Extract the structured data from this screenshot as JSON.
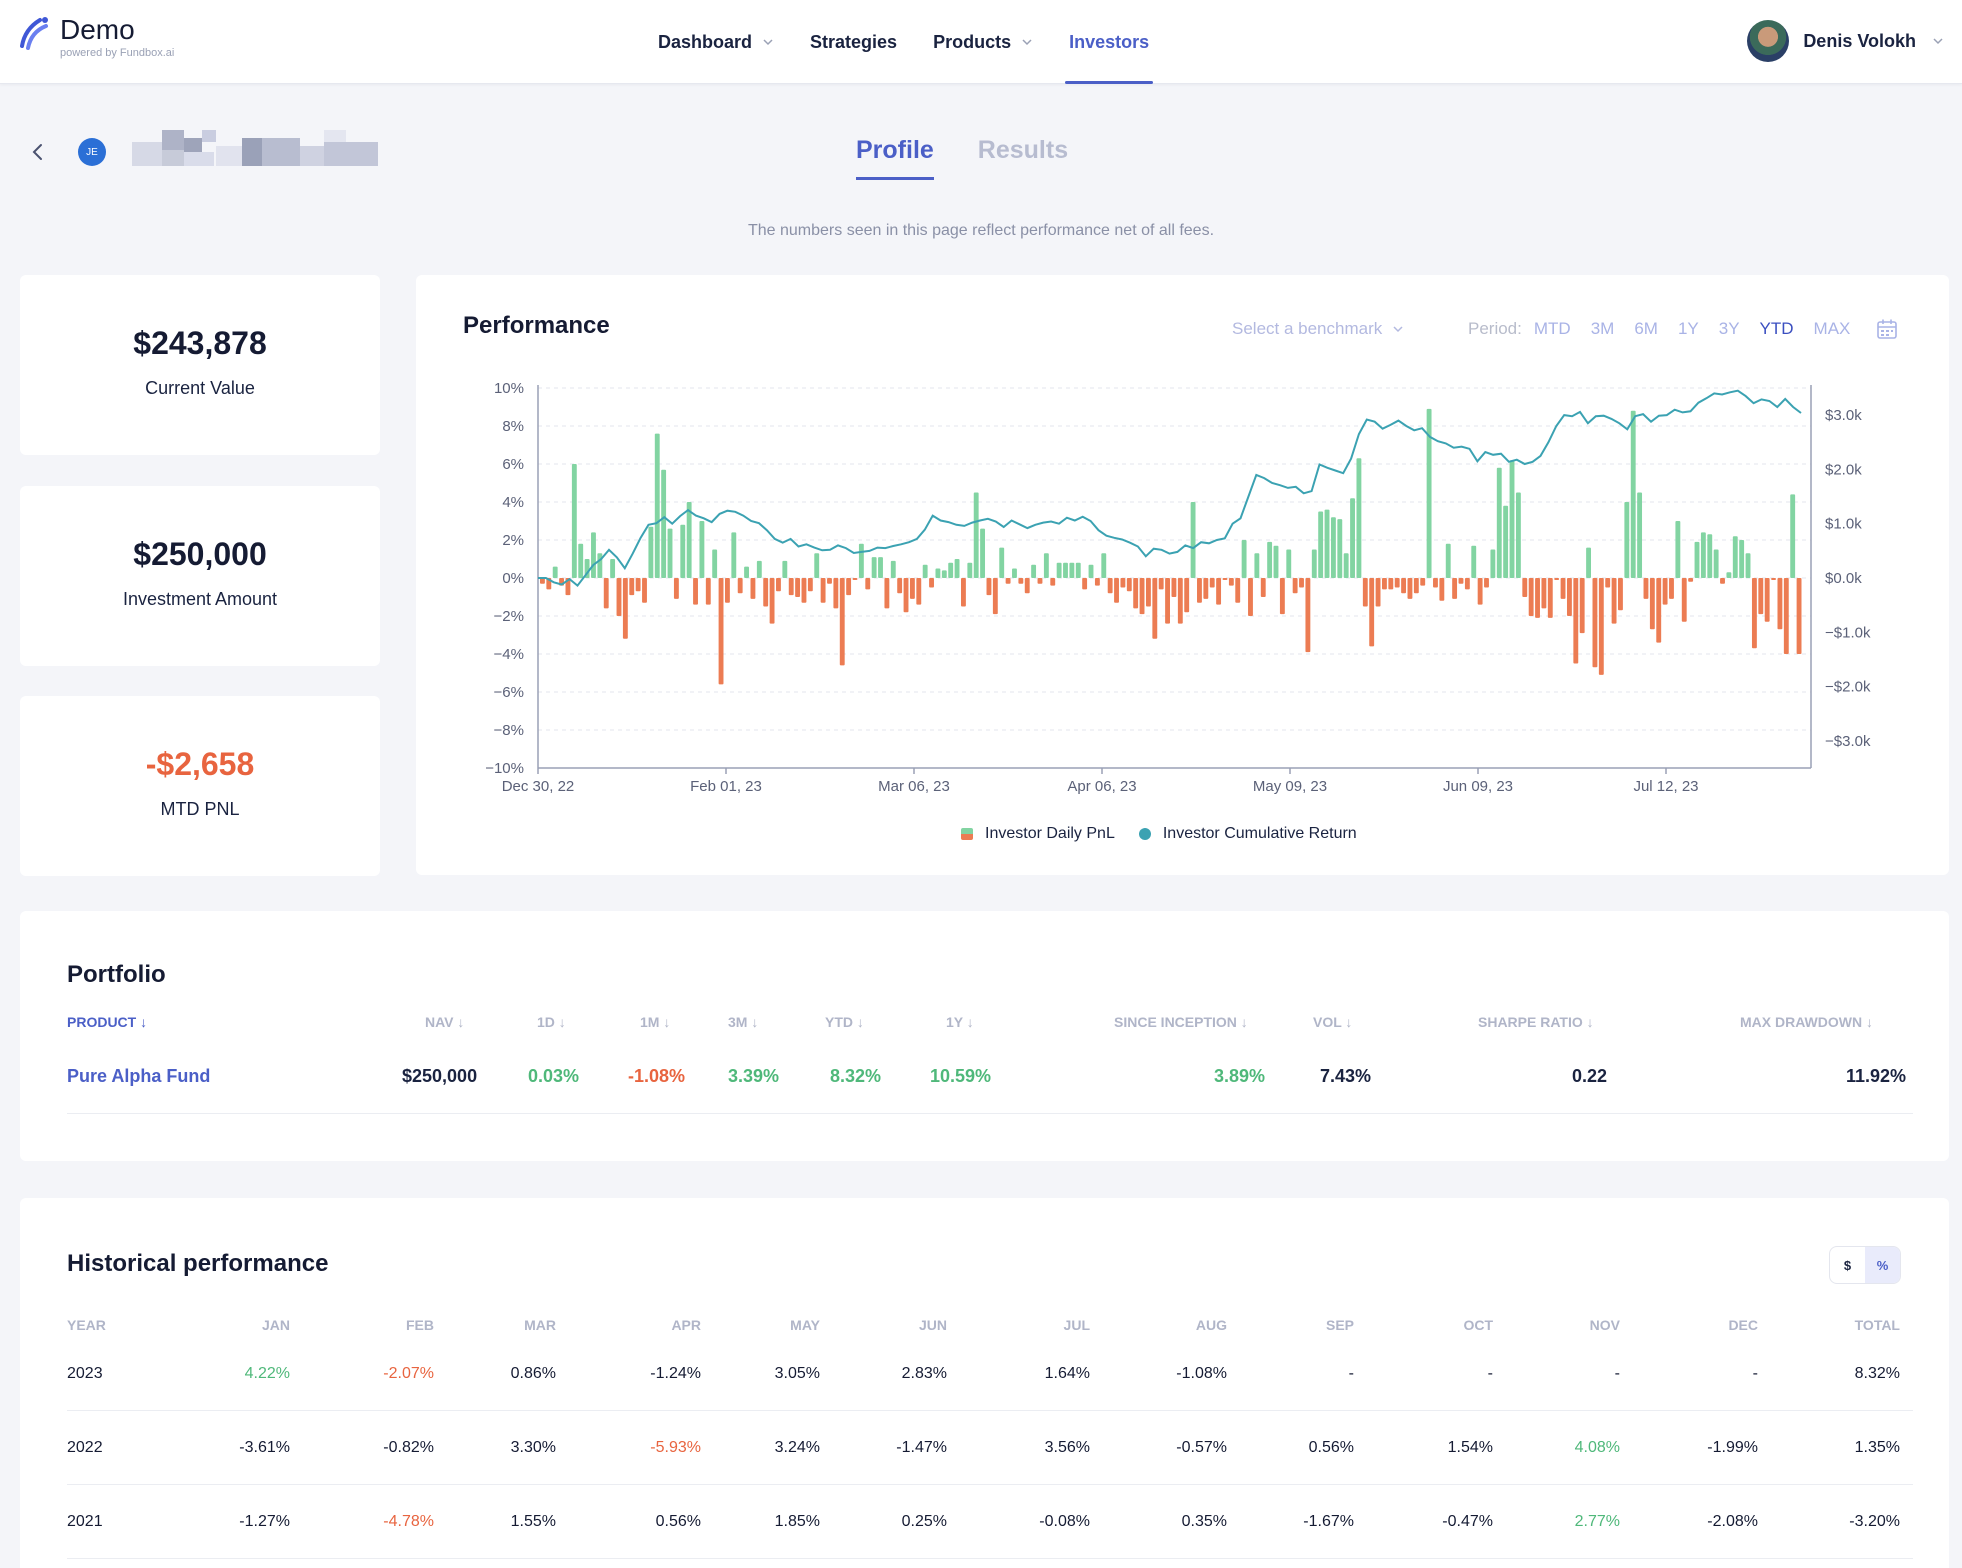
{
  "brand": {
    "name": "Demo",
    "sub": "powered by Fundbox.ai"
  },
  "nav": {
    "dashboard": "Dashboard",
    "strategies": "Strategies",
    "products": "Products",
    "investors": "Investors"
  },
  "user": {
    "name": "Denis Volokh"
  },
  "investor": {
    "initials": "JE"
  },
  "tabs": {
    "profile": "Profile",
    "results": "Results"
  },
  "note": "The numbers seen in this page reflect performance net of all fees.",
  "stats": [
    {
      "value": "$243,878",
      "label": "Current Value"
    },
    {
      "value": "$250,000",
      "label": "Investment Amount"
    },
    {
      "value": "-$2,658",
      "label": "MTD PNL"
    }
  ],
  "performance": {
    "title": "Performance",
    "benchmark": "Select a benchmark",
    "period_label": "Period:",
    "periods": [
      "MTD",
      "3M",
      "6M",
      "1Y",
      "3Y",
      "YTD",
      "MAX"
    ],
    "active_period": "YTD",
    "legend": {
      "pnl": "Investor Daily PnL",
      "cum": "Investor Cumulative Return"
    }
  },
  "chart_data": {
    "type": "bar",
    "x_ticks": [
      "Dec 30, 22",
      "Feb 01, 23",
      "Mar 06, 23",
      "Apr 06, 23",
      "May 09, 23",
      "Jun 09, 23",
      "Jul 12, 23"
    ],
    "y_left_ticks": [
      "10%",
      "8%",
      "6%",
      "4%",
      "2%",
      "0%",
      "−2%",
      "−4%",
      "−6%",
      "−8%",
      "−10%"
    ],
    "y_left_range": [
      -10,
      10
    ],
    "y_right_ticks": [
      "$3.0k",
      "$2.0k",
      "$1.0k",
      "$0.0k",
      "−$1.0k",
      "−$2.0k",
      "−$3.0k"
    ],
    "y_right_range": [
      -3.5,
      3.5
    ],
    "grid": true,
    "legend_position": "bottom-center",
    "colors": {
      "positive": "#82d4a2",
      "negative": "#ec7c53",
      "line": "#3ba2b2"
    },
    "series": [
      {
        "name": "Investor Daily PnL",
        "axis": "left",
        "values": [
          -0.3,
          -0.6,
          0.6,
          -0.4,
          -0.9,
          6.0,
          1.8,
          1.0,
          2.4,
          1.3,
          -1.6,
          1.0,
          -2.0,
          -3.2,
          -0.9,
          -0.7,
          -1.3,
          2.7,
          7.6,
          5.7,
          2.6,
          -1.1,
          2.8,
          4.0,
          -1.4,
          3.0,
          -1.4,
          1.5,
          -5.6,
          -1.3,
          2.4,
          -0.8,
          0.6,
          -1.1,
          0.9,
          -1.5,
          -2.4,
          -0.7,
          0.9,
          -0.9,
          -1.0,
          -1.3,
          -0.7,
          1.3,
          -1.3,
          -0.3,
          -1.6,
          -4.6,
          -0.9,
          -0.1,
          1.8,
          -0.6,
          1.1,
          1.1,
          -1.6,
          0.9,
          -0.8,
          -1.8,
          -1.1,
          -1.4,
          0.7,
          -0.5,
          0.5,
          0.4,
          0.8,
          1.0,
          -1.5,
          0.8,
          4.5,
          2.6,
          -0.9,
          -1.9,
          1.6,
          -0.3,
          0.5,
          -0.3,
          -0.8,
          0.7,
          -0.3,
          1.3,
          -0.4,
          0.8,
          0.8,
          0.8,
          0.8,
          -0.6,
          0.7,
          -0.4,
          1.3,
          -0.8,
          -1.3,
          -0.5,
          -0.7,
          -1.6,
          -1.9,
          -1.5,
          -3.2,
          -0.6,
          -2.4,
          -1.0,
          -2.4,
          -1.8,
          4.0,
          -1.3,
          -1.1,
          -0.5,
          -1.4,
          -0.1,
          -0.4,
          -1.3,
          2.0,
          -2.0,
          1.3,
          -1.0,
          1.9,
          1.7,
          -1.9,
          1.5,
          -0.8,
          -0.5,
          -3.9,
          1.5,
          3.5,
          3.6,
          3.2,
          3.1,
          1.3,
          4.2,
          6.3,
          -1.5,
          -3.6,
          -1.5,
          -0.6,
          -0.6,
          -0.5,
          -0.8,
          -1.1,
          -0.8,
          -0.4,
          8.9,
          -0.5,
          -1.2,
          1.8,
          -1.1,
          -0.3,
          -0.6,
          1.7,
          -1.4,
          -0.5,
          1.5,
          5.8,
          3.8,
          6.2,
          4.5,
          -1.0,
          -2.0,
          -2.1,
          -1.6,
          -2.1,
          -0.1,
          -1.1,
          -2.0,
          -4.5,
          -2.9,
          1.6,
          -4.7,
          -5.1,
          -0.5,
          -2.4,
          -1.7,
          4.0,
          8.8,
          4.5,
          -1.1,
          -2.7,
          -3.4,
          -1.4,
          -1.1,
          3.0,
          -2.3,
          -0.2,
          1.9,
          2.4,
          2.3,
          1.5,
          -0.3,
          0.3,
          2.2,
          2.0,
          1.3,
          -3.7,
          -1.9,
          -2.3,
          -0.1,
          -2.7,
          -4.0,
          4.4,
          -4.0
        ]
      },
      {
        "name": "Investor Cumulative Return",
        "axis": "right",
        "values": [
          0.0,
          0.0,
          -0.08,
          -0.12,
          -0.02,
          -0.14,
          0.05,
          0.24,
          0.35,
          0.52,
          0.38,
          0.18,
          0.45,
          0.74,
          0.98,
          1.01,
          1.12,
          1.0,
          1.14,
          1.25,
          1.15,
          1.1,
          1.03,
          1.18,
          1.24,
          1.22,
          1.15,
          1.05,
          1.01,
          0.88,
          0.72,
          0.65,
          0.72,
          0.58,
          0.62,
          0.56,
          0.51,
          0.52,
          0.6,
          0.55,
          0.46,
          0.48,
          0.5,
          0.56,
          0.55,
          0.59,
          0.62,
          0.66,
          0.72,
          0.89,
          1.15,
          1.06,
          1.03,
          0.98,
          0.96,
          1.02,
          1.06,
          1.09,
          1.04,
          0.94,
          1.06,
          0.99,
          0.92,
          0.98,
          1.02,
          1.04,
          1.0,
          1.11,
          1.06,
          1.13,
          1.05,
          0.88,
          0.78,
          0.74,
          0.71,
          0.65,
          0.58,
          0.4,
          0.54,
          0.52,
          0.45,
          0.48,
          0.6,
          0.55,
          0.66,
          0.64,
          0.7,
          0.73,
          1.0,
          1.1,
          1.5,
          1.9,
          1.84,
          1.75,
          1.71,
          1.66,
          1.68,
          1.56,
          1.6,
          2.09,
          2.03,
          1.98,
          1.93,
          2.2,
          2.65,
          2.92,
          2.88,
          2.75,
          2.82,
          2.9,
          2.8,
          2.72,
          2.76,
          2.6,
          2.52,
          2.48,
          2.4,
          2.42,
          2.38,
          2.15,
          2.32,
          2.27,
          2.29,
          2.14,
          2.18,
          2.1,
          2.14,
          2.25,
          2.5,
          2.8,
          3.0,
          2.98,
          3.06,
          2.85,
          2.98,
          2.99,
          2.93,
          2.85,
          2.74,
          2.98,
          3.02,
          2.88,
          2.99,
          3.0,
          3.1,
          3.05,
          3.07,
          3.23,
          3.31,
          3.4,
          3.38,
          3.42,
          3.45,
          3.35,
          3.22,
          3.29,
          3.26,
          3.15,
          3.3,
          3.15,
          3.04
        ]
      }
    ]
  },
  "portfolio": {
    "title": "Portfolio",
    "headers": [
      "PRODUCT",
      "NAV",
      "1D",
      "1M",
      "3M",
      "YTD",
      "1Y",
      "SINCE INCEPTION",
      "VOL",
      "SHARPE RATIO",
      "MAX DRAWDOWN"
    ],
    "row": {
      "product": "Pure Alpha Fund",
      "nav": "$250,000",
      "d1": "0.03%",
      "m1": "-1.08%",
      "m3": "3.39%",
      "ytd": "8.32%",
      "y1": "10.59%",
      "inception": "3.89%",
      "vol": "7.43%",
      "sharpe": "0.22",
      "drawdown": "11.92%"
    }
  },
  "historical": {
    "title": "Historical performance",
    "toggle": [
      "$",
      "%"
    ],
    "active_toggle": "%",
    "headers": [
      "YEAR",
      "JAN",
      "FEB",
      "MAR",
      "APR",
      "MAY",
      "JUN",
      "JUL",
      "AUG",
      "SEP",
      "OCT",
      "NOV",
      "DEC",
      "TOTAL"
    ],
    "rows": [
      [
        "2023",
        "4.22%",
        "-2.07%",
        "0.86%",
        "-1.24%",
        "3.05%",
        "2.83%",
        "1.64%",
        "-1.08%",
        "-",
        "-",
        "-",
        "-",
        "8.32%"
      ],
      [
        "2022",
        "-3.61%",
        "-0.82%",
        "3.30%",
        "-5.93%",
        "3.24%",
        "-1.47%",
        "3.56%",
        "-0.57%",
        "0.56%",
        "1.54%",
        "4.08%",
        "-1.99%",
        "1.35%"
      ],
      [
        "2021",
        "-1.27%",
        "-4.78%",
        "1.55%",
        "0.56%",
        "1.85%",
        "0.25%",
        "-0.08%",
        "0.35%",
        "-1.67%",
        "-0.47%",
        "2.77%",
        "-2.08%",
        "-3.20%"
      ]
    ],
    "highlight_green": [
      [
        0,
        1
      ],
      [
        1,
        11
      ],
      [
        2,
        11
      ]
    ],
    "highlight_red": [
      [
        0,
        2
      ],
      [
        1,
        4
      ],
      [
        2,
        2
      ]
    ]
  }
}
